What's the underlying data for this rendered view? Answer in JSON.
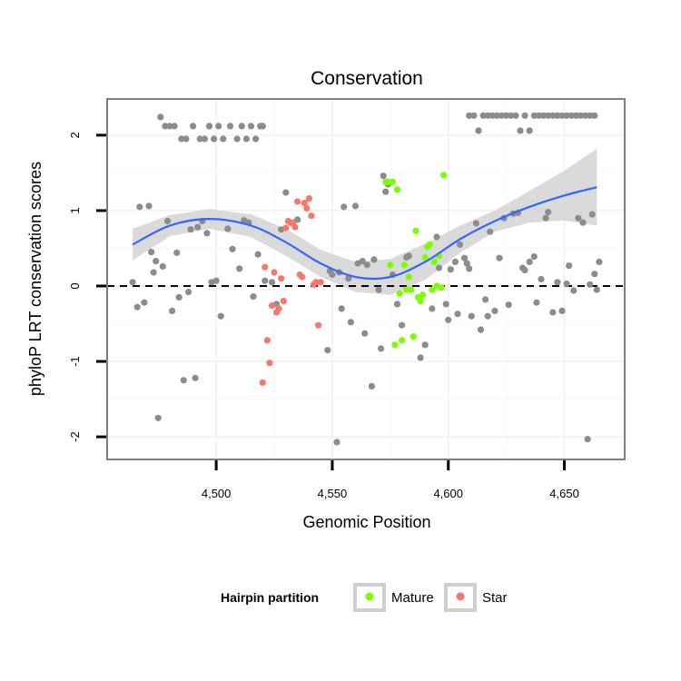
{
  "chart_data": {
    "type": "scatter",
    "title": "Conservation",
    "xlabel": "Genomic Position",
    "ylabel": "phyloP LRT conservation scores",
    "xlim": [
      4453,
      4676
    ],
    "ylim": [
      -2.3,
      2.48
    ],
    "x_ticks": [
      4500,
      4550,
      4600,
      4650
    ],
    "x_tick_labels": [
      "4,500",
      "4,550",
      "4,600",
      "4,650"
    ],
    "y_ticks": [
      -2,
      -1,
      0,
      1,
      2
    ],
    "y_tick_labels": [
      "-2",
      "-1",
      "0",
      "1",
      "2"
    ],
    "reference_line": {
      "y": 0,
      "style": "dashed"
    },
    "grid": true,
    "legend": {
      "title": "Hairpin partition",
      "position": "bottom",
      "entries": [
        {
          "label": "Mature",
          "color": "#7CFC00"
        },
        {
          "label": "Star",
          "color": "#F8766D"
        }
      ]
    },
    "colors": {
      "other": "#8c8c8c",
      "smooth": "#3366FF",
      "ribbon": "#d3d3d3",
      "panel_border": "#7f7f7f"
    },
    "smooth": {
      "x": [
        4464,
        4480,
        4497,
        4515,
        4530,
        4545,
        4560,
        4575,
        4590,
        4605,
        4620,
        4635,
        4650,
        4664
      ],
      "y": [
        0.55,
        0.8,
        0.89,
        0.8,
        0.58,
        0.3,
        0.12,
        0.12,
        0.32,
        0.62,
        0.86,
        1.05,
        1.2,
        1.31
      ],
      "lower": [
        0.34,
        0.66,
        0.76,
        0.65,
        0.4,
        0.12,
        -0.08,
        -0.12,
        0.08,
        0.44,
        0.72,
        0.84,
        0.87,
        0.8
      ],
      "upper": [
        0.76,
        0.94,
        1.02,
        0.95,
        0.76,
        0.48,
        0.32,
        0.36,
        0.56,
        0.8,
        1.0,
        1.26,
        1.53,
        1.82
      ]
    },
    "series": [
      {
        "name": "Other",
        "color": "#8c8c8c",
        "x": [
          4464,
          4466,
          4467,
          4469,
          4471,
          4472,
          4473,
          4474,
          4475,
          4477,
          4479,
          4481,
          4483,
          4484,
          4486,
          4488,
          4489,
          4491,
          4492,
          4494,
          4496,
          4498,
          4500,
          4502,
          4505,
          4507,
          4510,
          4512,
          4514,
          4516,
          4518,
          4521,
          4524,
          4526,
          4528,
          4530,
          4533,
          4535,
          4548,
          4549,
          4550,
          4552,
          4553,
          4554,
          4555,
          4557,
          4558,
          4560,
          4561,
          4563,
          4564,
          4565,
          4567,
          4568,
          4570,
          4571,
          4572,
          4573,
          4574,
          4576,
          4578,
          4580,
          4582,
          4583,
          4588,
          4590,
          4593,
          4595,
          4596,
          4599,
          4600,
          4601,
          4603,
          4604,
          4605,
          4607,
          4608,
          4609,
          4610,
          4612,
          4614,
          4616,
          4617,
          4618,
          4620,
          4622,
          4624,
          4626,
          4628,
          4630,
          4632,
          4633,
          4635,
          4637,
          4638,
          4640,
          4642,
          4643,
          4645,
          4647,
          4649,
          4651,
          4652,
          4654,
          4656,
          4658,
          4660,
          4661,
          4662,
          4663,
          4664,
          4665,
          4476,
          4478,
          4480,
          4482,
          4485,
          4487,
          4490,
          4493,
          4495,
          4497,
          4499,
          4501,
          4503,
          4506,
          4509,
          4511,
          4513,
          4515,
          4517,
          4519,
          4520,
          4609,
          4611,
          4613,
          4615,
          4617,
          4619,
          4621,
          4623,
          4625,
          4627,
          4629,
          4631,
          4633,
          4635,
          4637,
          4639,
          4641,
          4643,
          4645,
          4647,
          4649,
          4651,
          4653,
          4655,
          4657,
          4659,
          4661,
          4663
        ],
        "y": [
          0.05,
          -0.28,
          1.05,
          -0.22,
          1.06,
          0.45,
          0.18,
          0.33,
          -1.75,
          0.26,
          0.86,
          -0.33,
          0.44,
          -0.15,
          -1.25,
          -0.08,
          0.75,
          -1.22,
          0.78,
          0.86,
          0.7,
          0.05,
          0.07,
          -0.4,
          0.76,
          0.49,
          0.23,
          0.87,
          0.84,
          -0.14,
          0.42,
          0.07,
          0.05,
          -0.24,
          0.75,
          1.24,
          0.84,
          0.88,
          -0.85,
          0.2,
          0.15,
          -2.07,
          0.18,
          -0.3,
          1.05,
          0.1,
          -0.48,
          1.06,
          0.3,
          0.33,
          -0.63,
          0.28,
          -1.33,
          0.35,
          -0.05,
          -0.83,
          1.46,
          1.25,
          1.35,
          0.15,
          -0.24,
          -0.52,
          0.38,
          0.4,
          -0.95,
          -0.78,
          -0.3,
          0.65,
          0.24,
          -0.24,
          -0.45,
          0.22,
          0.32,
          -0.37,
          0.55,
          0.37,
          0.3,
          0.23,
          -0.4,
          0.83,
          -0.58,
          -0.18,
          -0.4,
          0.72,
          -0.33,
          0.37,
          0.9,
          -0.25,
          0.96,
          0.97,
          0.24,
          0.21,
          0.32,
          0.39,
          -0.22,
          0.09,
          0.9,
          0.98,
          -0.35,
          0.05,
          -0.33,
          0.03,
          0.27,
          -0.06,
          0.9,
          0.84,
          -2.03,
          0.02,
          0.95,
          0.16,
          -0.05,
          0.32,
          2.24,
          2.12,
          2.12,
          2.12,
          1.95,
          1.95,
          2.12,
          1.95,
          1.95,
          2.12,
          1.95,
          2.12,
          1.95,
          2.12,
          1.95,
          2.12,
          1.95,
          2.12,
          1.95,
          2.12,
          2.12,
          2.26,
          2.26,
          2.06,
          2.26,
          2.26,
          2.26,
          2.26,
          2.26,
          2.26,
          2.26,
          2.26,
          2.06,
          2.26,
          2.06,
          2.26,
          2.26,
          2.26,
          2.26,
          2.26,
          2.26,
          2.26,
          2.26,
          2.26,
          2.26,
          2.26,
          2.26,
          2.26,
          2.26
        ]
      },
      {
        "name": "Mature",
        "color": "#7CFC00",
        "x": [
          4573,
          4574,
          4575,
          4576,
          4577,
          4578,
          4579,
          4580,
          4581,
          4582,
          4583,
          4584,
          4585,
          4586,
          4587,
          4588,
          4589,
          4590,
          4591,
          4592,
          4593,
          4594,
          4595,
          4596,
          4597,
          4598
        ],
        "y": [
          1.38,
          1.38,
          0.28,
          1.38,
          -0.78,
          1.28,
          -0.1,
          -0.72,
          0.28,
          -0.05,
          0.12,
          -0.05,
          -0.67,
          0.73,
          -0.15,
          -0.2,
          -0.12,
          0.38,
          0.52,
          0.55,
          -0.05,
          0.32,
          0.0,
          0.4,
          -0.02,
          1.47
        ]
      },
      {
        "name": "Star",
        "color": "#F8766D",
        "x": [
          4520,
          4521,
          4522,
          4523,
          4524,
          4525,
          4526,
          4527,
          4528,
          4529,
          4530,
          4531,
          4532,
          4533,
          4534,
          4535,
          4536,
          4537,
          4538,
          4539,
          4540,
          4541,
          4542,
          4543,
          4544,
          4545
        ],
        "y": [
          -1.28,
          0.25,
          -0.72,
          -1.02,
          -0.26,
          0.18,
          -0.35,
          -0.3,
          0.1,
          -0.2,
          0.77,
          0.86,
          0.84,
          0.83,
          0.78,
          1.12,
          0.15,
          0.12,
          1.1,
          1.03,
          1.16,
          0.93,
          0.02,
          0.05,
          -0.52,
          0.05
        ]
      }
    ]
  }
}
